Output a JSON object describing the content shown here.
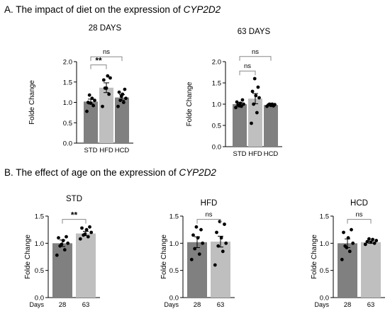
{
  "sections": [
    {
      "title_prefix": "A. The impact of diet on the expression of ",
      "gene": "CYP2D2"
    },
    {
      "title_prefix": "B. The effect of age on the expression of ",
      "gene": "CYP2D2"
    }
  ],
  "colors": {
    "dark_bar": "#808080",
    "light_bar": "#bfbfbf",
    "points": "#000000",
    "bracket": "#888888"
  },
  "chart_data": [
    {
      "type": "bar",
      "title": "28 DAYS",
      "ylabel": "Folde Change",
      "ylim": [
        0,
        2.0
      ],
      "yticks": [
        "0.0",
        "0.5",
        "1.0",
        "1.5",
        "2.0"
      ],
      "categories": [
        "STD",
        "HFD",
        "HCD"
      ],
      "values": [
        1.02,
        1.36,
        1.12
      ],
      "errors": [
        0.06,
        0.12,
        0.07
      ],
      "bar_colors": [
        "#808080",
        "#bfbfbf",
        "#808080"
      ],
      "points": [
        [
          0.78,
          0.92,
          0.98,
          1.0,
          1.05,
          1.1,
          1.18
        ],
        [
          0.9,
          1.2,
          1.35,
          1.55,
          1.6,
          1.65,
          1.35
        ],
        [
          0.9,
          1.0,
          1.05,
          1.1,
          1.2,
          1.25,
          1.32,
          1.15
        ]
      ],
      "comparisons": [
        {
          "from": 0,
          "to": 1,
          "y": 1.92,
          "label": "**"
        },
        {
          "from": 0,
          "to": 2,
          "y": 2.12,
          "label": "ns"
        }
      ]
    },
    {
      "type": "bar",
      "title": "63 DAYS",
      "ylabel": "Folde Change",
      "ylim": [
        0,
        2.0
      ],
      "yticks": [
        "0.0",
        "0.5",
        "1.0",
        "1.5",
        "2.0"
      ],
      "categories": [
        "STD",
        "HFD",
        "HCD"
      ],
      "values": [
        1.0,
        1.13,
        0.98
      ],
      "errors": [
        0.04,
        0.12,
        0.02
      ],
      "bar_colors": [
        "#808080",
        "#bfbfbf",
        "#808080"
      ],
      "points": [
        [
          0.92,
          0.95,
          0.98,
          1.0,
          1.02,
          1.05,
          1.1,
          0.96
        ],
        [
          0.55,
          0.8,
          1.0,
          1.15,
          1.2,
          1.3,
          1.4,
          1.6
        ],
        [
          0.95,
          0.96,
          0.97,
          0.98,
          0.99,
          1.0,
          1.0
        ]
      ],
      "comparisons": [
        {
          "from": 0,
          "to": 1,
          "y": 1.78,
          "label": "ns"
        },
        {
          "from": 0,
          "to": 2,
          "y": 2.12,
          "label": "ns"
        }
      ]
    },
    {
      "type": "bar",
      "title": "STD",
      "ylabel": "Folde Change",
      "ylim": [
        0,
        1.5
      ],
      "yticks": [
        "0.0",
        "0.5",
        "1.0",
        "1.5"
      ],
      "axis_prefix": "Days",
      "categories": [
        "28",
        "63"
      ],
      "values": [
        1.0,
        1.18
      ],
      "errors": [
        0.06,
        0.04
      ],
      "bar_colors": [
        "#808080",
        "#bfbfbf"
      ],
      "points": [
        [
          0.78,
          0.88,
          0.95,
          1.0,
          1.05,
          1.1,
          1.12,
          0.98
        ],
        [
          1.08,
          1.12,
          1.15,
          1.2,
          1.25,
          1.28,
          1.3,
          1.17
        ]
      ],
      "comparisons": [
        {
          "from": 0,
          "to": 1,
          "y": 1.44,
          "label": "**"
        }
      ]
    },
    {
      "type": "bar",
      "title": "HFD",
      "ylabel": "Folde Change",
      "ylim": [
        0,
        1.5
      ],
      "yticks": [
        "0.0",
        "0.5",
        "1.0",
        "1.5"
      ],
      "axis_prefix": "Days",
      "categories": [
        "28",
        "63"
      ],
      "values": [
        1.02,
        1.03
      ],
      "errors": [
        0.1,
        0.1
      ],
      "bar_colors": [
        "#808080",
        "#bfbfbf"
      ],
      "points": [
        [
          0.7,
          0.8,
          0.9,
          1.0,
          1.1,
          1.15,
          1.25,
          1.3
        ],
        [
          0.6,
          0.85,
          0.95,
          1.0,
          1.1,
          1.2,
          1.35,
          1.4
        ]
      ],
      "comparisons": [
        {
          "from": 0,
          "to": 1,
          "y": 1.44,
          "label": "ns"
        }
      ]
    },
    {
      "type": "bar",
      "title": "HCD",
      "ylabel": "Folde Change",
      "ylim": [
        0,
        1.5
      ],
      "yticks": [
        "0.0",
        "0.5",
        "1.0",
        "1.5"
      ],
      "axis_prefix": "Days",
      "categories": [
        "28",
        "63"
      ],
      "values": [
        1.0,
        1.02
      ],
      "errors": [
        0.08,
        0.02
      ],
      "bar_colors": [
        "#808080",
        "#bfbfbf"
      ],
      "points": [
        [
          0.7,
          0.85,
          0.95,
          1.0,
          1.1,
          1.2,
          1.25,
          0.92
        ],
        [
          0.98,
          1.0,
          1.02,
          1.03,
          1.05,
          1.07,
          1.08
        ]
      ],
      "comparisons": [
        {
          "from": 0,
          "to": 1,
          "y": 1.44,
          "label": "ns"
        }
      ]
    }
  ]
}
